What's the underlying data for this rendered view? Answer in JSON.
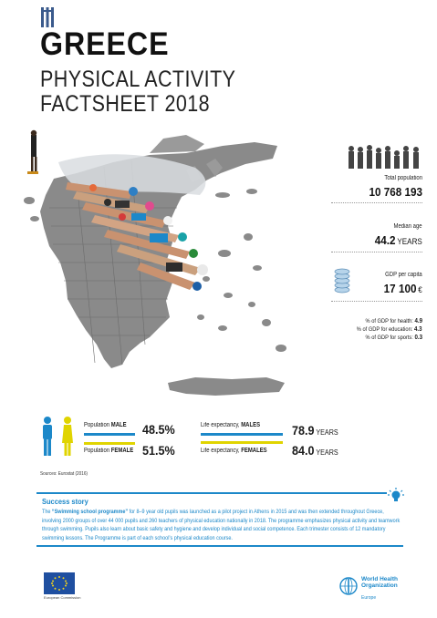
{
  "header": {
    "country": "GREECE",
    "line2": "PHYSICAL ACTIVITY",
    "line3": "FACTSHEET 2018"
  },
  "stats": {
    "population_label": "Total population",
    "population_value": "10 768 193",
    "median_age_label": "Median age",
    "median_age_value": "44.2",
    "median_age_unit": "YEARS",
    "gdp_label": "GDP per capita",
    "gdp_value": "17 100",
    "gdp_unit": "€",
    "gdp_health_label": "% of GDP for health:",
    "gdp_health_value": "4.9",
    "gdp_education_label": "% of GDP for education:",
    "gdp_education_value": "4.3",
    "gdp_sports_label": "% of GDP for sports:",
    "gdp_sports_value": "0.3"
  },
  "population_split": {
    "male_label_prefix": "Population ",
    "male_label_bold": "MALE",
    "male_value": "48.5%",
    "male_fraction": 0.485,
    "female_label_prefix": "Population ",
    "female_label_bold": "FEMALE",
    "female_value": "51.5%",
    "female_fraction": 0.515
  },
  "life_expectancy": {
    "male_label_prefix": "Life expectancy, ",
    "male_label_bold": "MALES",
    "male_value": "78.9",
    "female_label_prefix": "Life expectancy, ",
    "female_label_bold": "FEMALES",
    "female_value": "84.0",
    "unit": "YEARS"
  },
  "sources": "Sources: Eurostat (2016)",
  "success_story": {
    "title": "Success story",
    "text_prefix": "The ",
    "text_bold": "“Swimming school programme”",
    "text_rest": " for 8–9 year old pupils was launched as a pilot project in Athens in 2015 and was then extended throughout Greece, involving 2000 groups of over 44 000 pupils and 260 teachers of physical education nationally in 2018. The programme emphasizes physical activity and teamwork through swimming. Pupils also learn about basic safety and hygiene and develop individual and social competence. Each trimester consists of 12 mandatory swimming lessons. The Programme is part of each school’s physical education course."
  },
  "footer": {
    "eu_caption": "European Commission",
    "who_name_1": "World Health",
    "who_name_2": "Organization",
    "who_region": "Europe"
  },
  "colors": {
    "male": "#1c88c9",
    "female": "#e0d400",
    "accent": "#1c88c9"
  },
  "icons": [
    "greek-flag-icon",
    "people-silhouettes-icon",
    "coins-icon",
    "male-figure-icon",
    "female-figure-icon",
    "lightbulb-icon",
    "eu-flag-icon",
    "who-emblem-icon"
  ]
}
